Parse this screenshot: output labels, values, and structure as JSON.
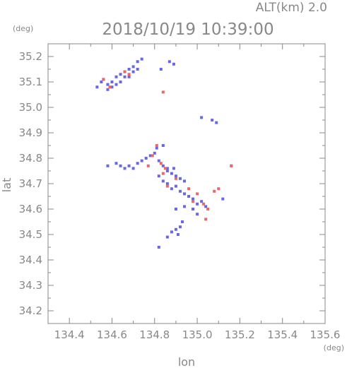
{
  "chart_data": {
    "type": "scatter",
    "title": "2018/10/19 10:39:00",
    "subtitle": "ALT(km)  2.0",
    "xlabel": "lon",
    "ylabel": "lat",
    "xunit": "(deg)",
    "yunit": "(deg)",
    "xlim": [
      134.3,
      135.6
    ],
    "ylim": [
      34.15,
      35.25
    ],
    "xticks": [
      "134.4",
      "134.6",
      "134.8",
      "135.0",
      "135.2",
      "135.4",
      "135.6"
    ],
    "yticks": [
      "34.2",
      "34.3",
      "34.4",
      "34.5",
      "34.6",
      "34.7",
      "34.8",
      "34.9",
      "35.0",
      "35.1",
      "35.2"
    ],
    "grid": false,
    "colors": {
      "blue": "#6666ee",
      "red": "#ee6666",
      "axis": "#888888"
    },
    "series": [
      {
        "color": "blue",
        "points": [
          [
            134.53,
            35.08
          ],
          [
            134.55,
            35.1
          ],
          [
            134.56,
            35.11
          ],
          [
            134.58,
            35.09
          ],
          [
            134.6,
            35.1
          ],
          [
            134.62,
            35.12
          ],
          [
            134.64,
            35.13
          ],
          [
            134.66,
            35.14
          ],
          [
            134.68,
            35.15
          ],
          [
            134.7,
            35.16
          ],
          [
            134.72,
            35.18
          ],
          [
            134.74,
            35.19
          ],
          [
            134.62,
            35.09
          ],
          [
            134.64,
            35.1
          ],
          [
            134.66,
            35.12
          ],
          [
            134.68,
            35.12
          ],
          [
            134.7,
            35.14
          ],
          [
            134.72,
            35.15
          ],
          [
            134.58,
            35.07
          ],
          [
            134.6,
            35.08
          ],
          [
            134.87,
            35.18
          ],
          [
            134.89,
            35.17
          ],
          [
            134.83,
            35.15
          ],
          [
            135.07,
            34.95
          ],
          [
            135.09,
            34.94
          ],
          [
            135.02,
            34.96
          ],
          [
            134.58,
            34.77
          ],
          [
            134.62,
            34.78
          ],
          [
            134.64,
            34.77
          ],
          [
            134.66,
            34.76
          ],
          [
            134.68,
            34.77
          ],
          [
            134.7,
            34.76
          ],
          [
            134.72,
            34.78
          ],
          [
            134.74,
            34.79
          ],
          [
            134.76,
            34.8
          ],
          [
            134.78,
            34.81
          ],
          [
            134.8,
            34.82
          ],
          [
            134.82,
            34.79
          ],
          [
            134.84,
            34.77
          ],
          [
            134.86,
            34.76
          ],
          [
            134.88,
            34.74
          ],
          [
            134.9,
            34.73
          ],
          [
            134.92,
            34.72
          ],
          [
            134.94,
            34.71
          ],
          [
            134.82,
            34.73
          ],
          [
            134.84,
            34.71
          ],
          [
            134.86,
            34.7
          ],
          [
            134.88,
            34.68
          ],
          [
            134.9,
            34.69
          ],
          [
            134.92,
            34.67
          ],
          [
            134.94,
            34.66
          ],
          [
            134.96,
            34.65
          ],
          [
            134.98,
            34.64
          ],
          [
            135.0,
            34.62
          ],
          [
            135.02,
            34.63
          ],
          [
            135.04,
            34.61
          ],
          [
            134.9,
            34.6
          ],
          [
            134.94,
            34.61
          ],
          [
            134.98,
            34.6
          ],
          [
            135.0,
            34.58
          ],
          [
            135.12,
            34.64
          ],
          [
            135.16,
            34.77
          ],
          [
            134.84,
            34.85
          ],
          [
            134.81,
            34.84
          ],
          [
            134.86,
            34.75
          ],
          [
            134.89,
            34.76
          ],
          [
            134.88,
            34.51
          ],
          [
            134.9,
            34.52
          ],
          [
            134.92,
            34.53
          ],
          [
            134.93,
            34.55
          ],
          [
            134.91,
            34.5
          ],
          [
            134.86,
            34.49
          ],
          [
            134.82,
            34.45
          ]
        ]
      },
      {
        "color": "red",
        "points": [
          [
            134.56,
            35.11
          ],
          [
            134.59,
            35.08
          ],
          [
            134.66,
            35.14
          ],
          [
            134.68,
            35.13
          ],
          [
            134.84,
            35.06
          ],
          [
            134.81,
            34.85
          ],
          [
            134.79,
            34.81
          ],
          [
            134.83,
            34.78
          ],
          [
            134.85,
            34.76
          ],
          [
            134.84,
            34.74
          ],
          [
            134.77,
            34.77
          ],
          [
            134.9,
            34.72
          ],
          [
            134.96,
            34.68
          ],
          [
            135.0,
            34.66
          ],
          [
            135.03,
            34.62
          ],
          [
            135.05,
            34.6
          ],
          [
            135.08,
            34.67
          ],
          [
            134.98,
            34.63
          ],
          [
            135.1,
            34.68
          ],
          [
            135.16,
            34.77
          ],
          [
            134.86,
            34.69
          ],
          [
            135.04,
            34.56
          ]
        ]
      }
    ]
  }
}
